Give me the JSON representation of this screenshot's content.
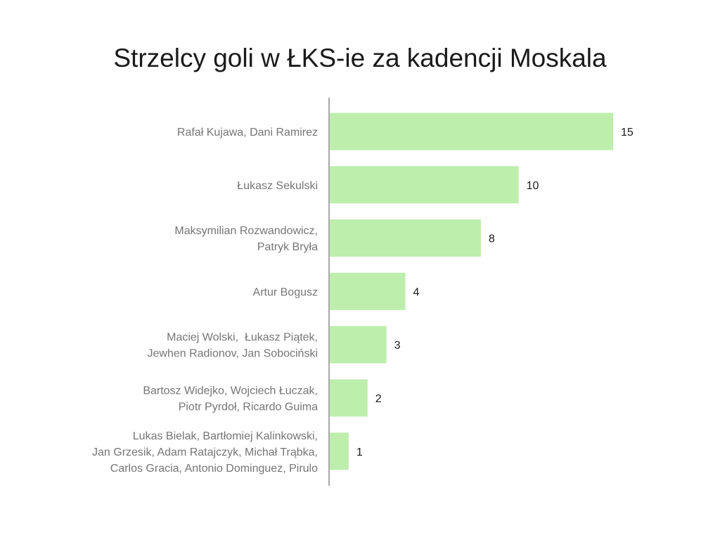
{
  "chart_data": {
    "type": "bar",
    "orientation": "horizontal",
    "title": "Strzelcy goli w ŁKS-ie za kadencji Moskala",
    "xlabel": "",
    "ylabel": "",
    "categories": [
      [
        "Rafał Kujawa, Dani Ramirez"
      ],
      [
        "Łukasz Sekulski"
      ],
      [
        "Maksymilian Rozwandowicz,",
        "Patryk Bryła"
      ],
      [
        "Artur Bogusz"
      ],
      [
        "Maciej Wolski,  Łukasz Piątek,",
        "Jewhen Radionov, Jan Sobociński"
      ],
      [
        "Bartosz Widejko, Wojciech Łuczak,",
        "Piotr Pyrdoł, Ricardo Guima"
      ],
      [
        "Lukas Bielak, Bartłomiej Kalinkowski,",
        "Jan Grzesik, Adam Ratajczyk, Michał Trąbka,",
        "Carlos Gracia, Antonio Dominguez, Pirulo"
      ]
    ],
    "values": [
      15,
      10,
      8,
      4,
      3,
      2,
      1
    ],
    "bar_color": "#bdeeac",
    "axis_color": "#a8a8a8",
    "grid": false,
    "legend": "none",
    "xlim": [
      0,
      20
    ]
  }
}
